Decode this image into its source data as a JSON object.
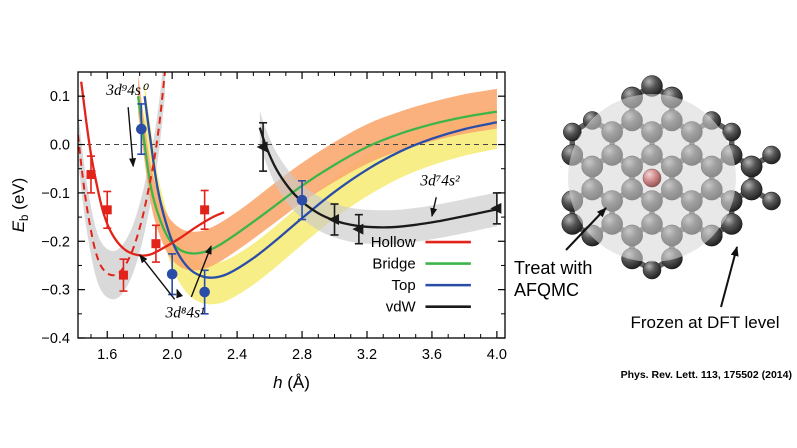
{
  "chart_data": {
    "type": "line",
    "title": "",
    "xlabel_main": "h",
    "xlabel_rest": " (Å)",
    "ylabel_main": "E",
    "ylabel_sub": "b",
    "ylabel_rest": " (eV)",
    "xlim": [
      1.42,
      4.05
    ],
    "ylim": [
      -0.4,
      0.15
    ],
    "xticks": [
      1.6,
      2.0,
      2.4,
      2.8,
      3.2,
      3.6,
      4.0
    ],
    "yticks": [
      0.1,
      0.0,
      -0.1,
      -0.2,
      -0.3,
      -0.4
    ],
    "grid": false,
    "zero_line": true,
    "colors": {
      "hollow": "#e2231a",
      "bridge": "#3db54a",
      "top": "#2a4da8",
      "vdw": "#1a1a1a",
      "band_orange": "#f9a870",
      "band_yellow": "#f7ec7a",
      "band_gray": "#c9c9c9"
    },
    "series": [
      {
        "name": "bridge-curve",
        "color_key": "bridge",
        "style": "solid",
        "points": [
          [
            1.79,
            0.1
          ],
          [
            1.83,
            0.0
          ],
          [
            1.87,
            -0.09
          ],
          [
            1.92,
            -0.15
          ],
          [
            1.98,
            -0.195
          ],
          [
            2.05,
            -0.218
          ],
          [
            2.12,
            -0.225
          ],
          [
            2.2,
            -0.222
          ],
          [
            2.3,
            -0.206
          ],
          [
            2.45,
            -0.172
          ],
          [
            2.6,
            -0.135
          ],
          [
            2.8,
            -0.085
          ],
          [
            3.0,
            -0.042
          ],
          [
            3.2,
            -0.005
          ],
          [
            3.4,
            0.022
          ],
          [
            3.6,
            0.042
          ],
          [
            3.8,
            0.057
          ],
          [
            4.0,
            0.068
          ]
        ]
      },
      {
        "name": "top-curve",
        "color_key": "top",
        "style": "solid",
        "points": [
          [
            1.83,
            0.1
          ],
          [
            1.87,
            0.0
          ],
          [
            1.91,
            -0.09
          ],
          [
            1.96,
            -0.16
          ],
          [
            2.02,
            -0.215
          ],
          [
            2.1,
            -0.255
          ],
          [
            2.18,
            -0.272
          ],
          [
            2.26,
            -0.275
          ],
          [
            2.35,
            -0.266
          ],
          [
            2.5,
            -0.235
          ],
          [
            2.65,
            -0.195
          ],
          [
            2.8,
            -0.152
          ],
          [
            3.0,
            -0.098
          ],
          [
            3.2,
            -0.052
          ],
          [
            3.4,
            -0.015
          ],
          [
            3.6,
            0.012
          ],
          [
            3.8,
            0.032
          ],
          [
            4.0,
            0.046
          ]
        ]
      },
      {
        "name": "hollow-curve",
        "color_key": "hollow",
        "style": "solid",
        "points": [
          [
            1.44,
            0.13
          ],
          [
            1.47,
            0.05
          ],
          [
            1.5,
            -0.02
          ],
          [
            1.54,
            -0.09
          ],
          [
            1.58,
            -0.145
          ],
          [
            1.63,
            -0.185
          ],
          [
            1.7,
            -0.215
          ],
          [
            1.78,
            -0.228
          ],
          [
            1.86,
            -0.228
          ],
          [
            1.95,
            -0.213
          ],
          [
            2.05,
            -0.193
          ],
          [
            2.15,
            -0.17
          ],
          [
            2.25,
            -0.15
          ],
          [
            2.32,
            -0.14
          ]
        ]
      },
      {
        "name": "hollow-dashed-curve",
        "color_key": "hollow",
        "style": "dashed",
        "points": [
          [
            1.42,
            0.02
          ],
          [
            1.45,
            -0.07
          ],
          [
            1.48,
            -0.14
          ],
          [
            1.52,
            -0.21
          ],
          [
            1.56,
            -0.25
          ],
          [
            1.61,
            -0.268
          ],
          [
            1.66,
            -0.268
          ],
          [
            1.71,
            -0.25
          ],
          [
            1.76,
            -0.215
          ],
          [
            1.81,
            -0.16
          ],
          [
            1.85,
            -0.1
          ],
          [
            1.89,
            -0.03
          ],
          [
            1.92,
            0.04
          ],
          [
            1.94,
            0.1
          ],
          [
            1.955,
            0.15
          ]
        ]
      },
      {
        "name": "vdw-curve",
        "color_key": "vdw",
        "style": "solid",
        "points": [
          [
            2.54,
            0.035
          ],
          [
            2.58,
            -0.005
          ],
          [
            2.64,
            -0.05
          ],
          [
            2.72,
            -0.09
          ],
          [
            2.8,
            -0.118
          ],
          [
            2.9,
            -0.142
          ],
          [
            3.0,
            -0.157
          ],
          [
            3.1,
            -0.166
          ],
          [
            3.2,
            -0.17
          ],
          [
            3.35,
            -0.171
          ],
          [
            3.5,
            -0.166
          ],
          [
            3.65,
            -0.158
          ],
          [
            3.8,
            -0.148
          ],
          [
            3.9,
            -0.141
          ],
          [
            4.0,
            -0.134
          ]
        ]
      }
    ],
    "bands": [
      {
        "name": "hollow-dashed-uncertainty-band",
        "color_key": "band_gray",
        "opacity": 0.7,
        "x": [
          1.42,
          1.45,
          1.48,
          1.52,
          1.56,
          1.61,
          1.66,
          1.71,
          1.76,
          1.81,
          1.85,
          1.89,
          1.92,
          1.94,
          1.955
        ],
        "upper": [
          0.07,
          -0.02,
          -0.09,
          -0.16,
          -0.2,
          -0.218,
          -0.218,
          -0.2,
          -0.165,
          -0.11,
          -0.05,
          0.02,
          0.09,
          0.15,
          0.2
        ],
        "lower": [
          -0.03,
          -0.12,
          -0.19,
          -0.26,
          -0.3,
          -0.318,
          -0.318,
          -0.3,
          -0.265,
          -0.21,
          -0.15,
          -0.08,
          -0.01,
          0.05,
          0.1
        ]
      },
      {
        "name": "top-uncertainty-band",
        "color_key": "band_yellow",
        "opacity": 0.9,
        "x": [
          1.83,
          1.87,
          1.91,
          1.96,
          2.02,
          2.1,
          2.18,
          2.26,
          2.35,
          2.5,
          2.65,
          2.8,
          3.0,
          3.2,
          3.4,
          3.6,
          3.8,
          4.0
        ],
        "upper": [
          0.13,
          0.03,
          -0.06,
          -0.13,
          -0.185,
          -0.225,
          -0.242,
          -0.245,
          -0.236,
          -0.205,
          -0.165,
          -0.122,
          -0.068,
          -0.022,
          0.015,
          0.042,
          0.062,
          0.076
        ],
        "lower": [
          0.045,
          -0.055,
          -0.145,
          -0.215,
          -0.27,
          -0.31,
          -0.327,
          -0.33,
          -0.321,
          -0.29,
          -0.25,
          -0.207,
          -0.153,
          -0.107,
          -0.07,
          -0.043,
          -0.023,
          -0.009
        ]
      },
      {
        "name": "bridge-uncertainty-band",
        "color_key": "band_orange",
        "opacity": 0.9,
        "x": [
          1.79,
          1.83,
          1.87,
          1.92,
          1.98,
          2.05,
          2.12,
          2.2,
          2.3,
          2.45,
          2.6,
          2.8,
          3.0,
          3.2,
          3.4,
          3.6,
          3.8,
          4.0
        ],
        "upper": [
          0.145,
          0.045,
          -0.045,
          -0.105,
          -0.15,
          -0.173,
          -0.18,
          -0.177,
          -0.161,
          -0.127,
          -0.088,
          -0.038,
          0.005,
          0.042,
          0.068,
          0.088,
          0.104,
          0.115
        ],
        "lower": [
          0.065,
          -0.035,
          -0.125,
          -0.185,
          -0.23,
          -0.253,
          -0.26,
          -0.257,
          -0.241,
          -0.207,
          -0.17,
          -0.12,
          -0.077,
          -0.04,
          -0.013,
          0.007,
          0.022,
          0.033
        ]
      },
      {
        "name": "vdw-uncertainty-band",
        "color_key": "band_gray",
        "opacity": 0.65,
        "x": [
          2.54,
          2.58,
          2.64,
          2.72,
          2.8,
          2.9,
          3.0,
          3.1,
          3.2,
          3.35,
          3.5,
          3.65,
          3.8,
          3.9,
          4.0
        ],
        "upper": [
          0.07,
          0.03,
          -0.015,
          -0.055,
          -0.083,
          -0.107,
          -0.122,
          -0.131,
          -0.135,
          -0.136,
          -0.131,
          -0.123,
          -0.113,
          -0.106,
          -0.099
        ],
        "lower": [
          0.0,
          -0.04,
          -0.085,
          -0.125,
          -0.153,
          -0.177,
          -0.192,
          -0.201,
          -0.205,
          -0.206,
          -0.201,
          -0.193,
          -0.183,
          -0.176,
          -0.169
        ]
      }
    ],
    "scatter": [
      {
        "name": "hollow-afqmc-points",
        "marker": "square",
        "color_key": "hollow",
        "points": [
          [
            1.5,
            -0.062,
            0.038
          ],
          [
            1.6,
            -0.135,
            0.038
          ],
          [
            1.7,
            -0.27,
            0.033
          ],
          [
            1.9,
            -0.205,
            0.038
          ],
          [
            2.2,
            -0.135,
            0.04
          ]
        ]
      },
      {
        "name": "top-afqmc-points",
        "marker": "circle",
        "color_key": "top",
        "points": [
          [
            1.81,
            0.032,
            0.052
          ],
          [
            2.0,
            -0.268,
            0.042
          ],
          [
            2.2,
            -0.305,
            0.045
          ],
          [
            2.8,
            -0.115,
            0.04
          ]
        ]
      },
      {
        "name": "vdw-afqmc-points",
        "marker": "triangle-left",
        "color_key": "vdw",
        "points": [
          [
            2.56,
            -0.005,
            0.05
          ],
          [
            3.0,
            -0.155,
            0.032
          ],
          [
            3.15,
            -0.175,
            0.03
          ],
          [
            4.0,
            -0.132,
            0.032
          ]
        ]
      }
    ],
    "legend": {
      "position": "inside-right",
      "entries": [
        {
          "label": "Hollow",
          "color_key": "hollow"
        },
        {
          "label": "Bridge",
          "color_key": "bridge"
        },
        {
          "label": "Top",
          "color_key": "top"
        },
        {
          "label": "vdW",
          "color_key": "vdw"
        }
      ],
      "label_x": 3.5,
      "line_x": [
        3.56,
        3.84
      ],
      "y_start": -0.212,
      "dy": -0.0445
    },
    "annotations": [
      {
        "label": "3d⁹4s⁰",
        "tx": 1.72,
        "ty": 0.102,
        "arrows": [
          [
            1.76,
            -0.045
          ]
        ]
      },
      {
        "label": "3d⁷4s²",
        "tx": 3.65,
        "ty": -0.085,
        "arrows": [
          [
            3.6,
            -0.148
          ]
        ]
      },
      {
        "label": "3d⁸4s¹",
        "tx": 2.08,
        "ty": -0.358,
        "arrows": [
          [
            1.8,
            -0.228
          ],
          [
            2.03,
            -0.3
          ],
          [
            2.24,
            -0.21
          ]
        ]
      }
    ]
  },
  "molecule": {
    "labels": {
      "treat_line1": "Treat with",
      "treat_line2": "AFQMC",
      "frozen": "Frozen at DFT level"
    },
    "citation": "Phys. Rev. Lett. 113, 175502 (2014)",
    "colors": {
      "carbon": "#3b3b3b",
      "bond": "#5f5f5f",
      "adatom": "#c97878",
      "overlay": "#d8d8d8"
    }
  }
}
